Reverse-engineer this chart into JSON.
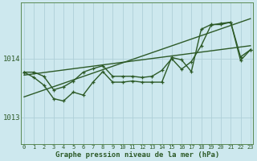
{
  "xlabel": "Graphe pression niveau de la mer (hPa)",
  "x_ticks": [
    0,
    1,
    2,
    3,
    4,
    5,
    6,
    7,
    8,
    9,
    10,
    11,
    12,
    13,
    14,
    15,
    16,
    17,
    18,
    19,
    20,
    21,
    22,
    23
  ],
  "ylim": [
    1012.55,
    1014.95
  ],
  "yticks": [
    1013,
    1014
  ],
  "background_color": "#cde8ee",
  "grid_color": "#afd0d8",
  "line_color": "#2d5a27",
  "line_width": 1.0,
  "series1": [
    1013.77,
    1013.77,
    1013.7,
    1013.47,
    1013.52,
    1013.62,
    1013.77,
    1013.83,
    1013.88,
    1013.7,
    1013.7,
    1013.7,
    1013.68,
    1013.7,
    1013.8,
    1014.0,
    1013.82,
    1013.95,
    1014.22,
    1014.57,
    1014.6,
    1014.62,
    1014.03,
    1014.15
  ],
  "series2": [
    1013.77,
    1013.68,
    1013.55,
    1013.32,
    1013.28,
    1013.43,
    1013.38,
    1013.6,
    1013.78,
    1013.6,
    1013.6,
    1013.62,
    1013.6,
    1013.6,
    1013.6,
    1014.02,
    1013.98,
    1013.78,
    1014.5,
    1014.58,
    1014.58,
    1014.62,
    1013.97,
    1014.15
  ],
  "trend1": [
    1013.72,
    1014.22
  ],
  "trend2": [
    1013.35,
    1014.68
  ]
}
